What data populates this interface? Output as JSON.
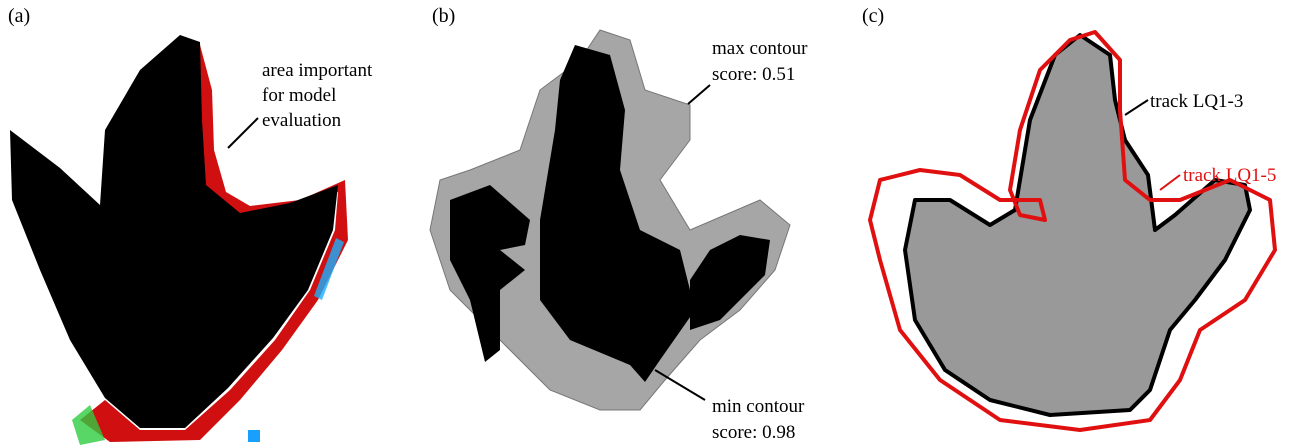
{
  "panels": [
    {
      "label": "(a)",
      "annotations": [
        {
          "lines": [
            "area important",
            "for model",
            "evaluation"
          ]
        }
      ]
    },
    {
      "label": "(b)",
      "annotations": [
        {
          "lines": [
            "max contour",
            "score: 0.51"
          ]
        },
        {
          "lines": [
            "min contour",
            "score: 0.98"
          ]
        }
      ]
    },
    {
      "label": "(c)",
      "annotations": [
        {
          "lines": [
            "track LQ1-3"
          ]
        },
        {
          "lines": [
            "track LQ1-5"
          ]
        }
      ]
    }
  ]
}
